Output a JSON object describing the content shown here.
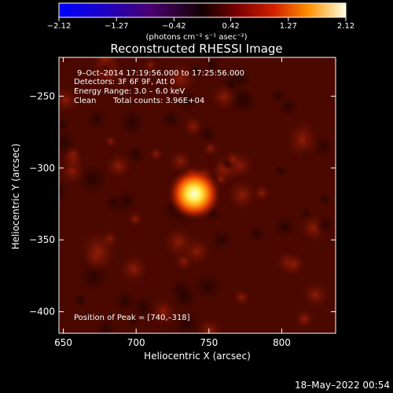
{
  "chart_data": {
    "type": "heatmap",
    "title": "Reconstructed RHESSI Image",
    "xlabel": "Heliocentric X (arcsec)",
    "ylabel": "Heliocentric Y (arcsec)",
    "xlim": [
      647,
      837
    ],
    "ylim": [
      -415,
      -223
    ],
    "xticks": [
      650,
      700,
      750,
      800
    ],
    "yticks": [
      -250,
      -300,
      -350,
      -400
    ],
    "xtick_labels": [
      "650",
      "700",
      "750",
      "800"
    ],
    "ytick_labels": [
      "−250",
      "−300",
      "−350",
      "−400"
    ],
    "colorbar": {
      "min": -2.12,
      "max": 2.12,
      "ticks": [
        -2.12,
        -1.27,
        -0.42,
        0.42,
        1.27,
        2.12
      ],
      "tick_labels": [
        "−2.12",
        "−1.27",
        "−0.42",
        "0.42",
        "1.27",
        "2.12"
      ],
      "unit_label": "(photons cm⁻² s⁻¹ asec⁻²)"
    },
    "peak": {
      "x": 740,
      "y": -318
    },
    "annotations": [
      "9–Oct–2014 17:19:56.000 to 17:25:56.000",
      "Detectors: 3F 6F 9F, Att 0",
      "Energy Range: 3.0 – 6.0 keV",
      "Clean",
      "Total counts: 3.96E+04",
      "Position of Peak = [740,–318]"
    ],
    "timestamp": "18–May–2022 00:54"
  }
}
